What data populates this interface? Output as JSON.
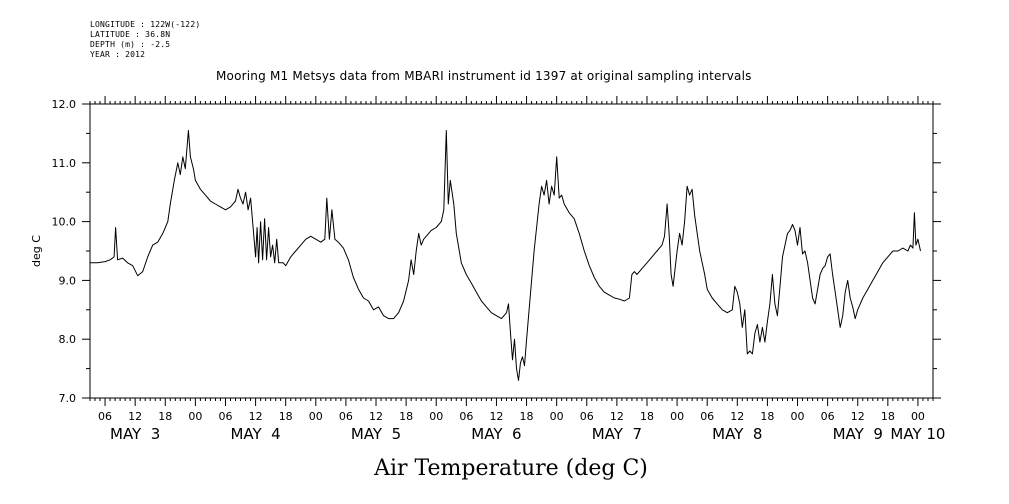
{
  "header": {
    "longitude": "LONGITUDE : 122W(-122)",
    "latitude": "LATITUDE : 36.8N",
    "depth": "DEPTH (m) : -2.5",
    "year": "YEAR : 2012"
  },
  "chart_data": {
    "type": "line",
    "title": "Mooring M1 Metsys data from MBARI instrument id 1397 at original sampling intervals",
    "xlabel": "Air Temperature (deg C)",
    "ylabel": "deg C",
    "ylim": [
      7.0,
      12.0
    ],
    "y_ticks": [
      "7.0",
      "8.0",
      "9.0",
      "10.0",
      "11.0",
      "12.0"
    ],
    "xlim_hours": [
      3,
      171
    ],
    "x_ticks": [
      "06",
      "12",
      "18",
      "00",
      "06",
      "12",
      "18",
      "00",
      "06",
      "12",
      "18",
      "00",
      "06",
      "12",
      "18",
      "00",
      "06",
      "12",
      "18",
      "00",
      "06",
      "12",
      "18",
      "00",
      "06",
      "12",
      "18",
      "00"
    ],
    "day_labels": [
      "MAY  3",
      "MAY  4",
      "MAY  5",
      "MAY  6",
      "MAY  7",
      "MAY  8",
      "MAY  9",
      "MAY 10"
    ],
    "grid": false,
    "series": [
      {
        "values": [
          [
            3.0,
            9.3
          ],
          [
            4.5,
            9.3
          ],
          [
            6.0,
            9.32
          ],
          [
            7.0,
            9.35
          ],
          [
            7.8,
            9.4
          ],
          [
            8.1,
            9.9
          ],
          [
            8.5,
            9.35
          ],
          [
            9.5,
            9.38
          ],
          [
            10.5,
            9.3
          ],
          [
            11.5,
            9.25
          ],
          [
            12.5,
            9.08
          ],
          [
            13.5,
            9.15
          ],
          [
            14.5,
            9.4
          ],
          [
            15.5,
            9.6
          ],
          [
            16.5,
            9.65
          ],
          [
            17.5,
            9.8
          ],
          [
            18.5,
            10.0
          ],
          [
            19.0,
            10.3
          ],
          [
            19.8,
            10.7
          ],
          [
            20.5,
            11.0
          ],
          [
            21.0,
            10.8
          ],
          [
            21.5,
            11.1
          ],
          [
            22.0,
            10.9
          ],
          [
            22.6,
            11.55
          ],
          [
            23.0,
            11.1
          ],
          [
            23.6,
            10.9
          ],
          [
            24.0,
            10.7
          ],
          [
            25.0,
            10.55
          ],
          [
            26.0,
            10.45
          ],
          [
            27.0,
            10.35
          ],
          [
            28.0,
            10.3
          ],
          [
            29.0,
            10.25
          ],
          [
            30.0,
            10.2
          ],
          [
            31.0,
            10.25
          ],
          [
            32.0,
            10.35
          ],
          [
            32.5,
            10.55
          ],
          [
            33.0,
            10.4
          ],
          [
            33.5,
            10.3
          ],
          [
            34.0,
            10.5
          ],
          [
            34.5,
            10.2
          ],
          [
            35.0,
            10.4
          ],
          [
            35.5,
            9.9
          ],
          [
            36.0,
            9.4
          ],
          [
            36.3,
            9.9
          ],
          [
            36.6,
            9.3
          ],
          [
            37.0,
            10.0
          ],
          [
            37.4,
            9.35
          ],
          [
            37.8,
            10.05
          ],
          [
            38.2,
            9.35
          ],
          [
            38.6,
            9.9
          ],
          [
            39.0,
            9.4
          ],
          [
            39.4,
            9.6
          ],
          [
            39.8,
            9.3
          ],
          [
            40.2,
            9.7
          ],
          [
            40.6,
            9.3
          ],
          [
            41.5,
            9.3
          ],
          [
            42.0,
            9.25
          ],
          [
            43.0,
            9.4
          ],
          [
            44.0,
            9.5
          ],
          [
            45.0,
            9.6
          ],
          [
            46.0,
            9.7
          ],
          [
            47.0,
            9.75
          ],
          [
            48.0,
            9.7
          ],
          [
            49.0,
            9.65
          ],
          [
            49.8,
            9.7
          ],
          [
            50.2,
            10.4
          ],
          [
            50.7,
            9.7
          ],
          [
            51.2,
            10.2
          ],
          [
            51.8,
            9.7
          ],
          [
            52.5,
            9.65
          ],
          [
            53.5,
            9.55
          ],
          [
            54.5,
            9.35
          ],
          [
            55.5,
            9.05
          ],
          [
            56.5,
            8.85
          ],
          [
            57.5,
            8.7
          ],
          [
            58.5,
            8.65
          ],
          [
            59.5,
            8.5
          ],
          [
            60.5,
            8.55
          ],
          [
            61.5,
            8.4
          ],
          [
            62.5,
            8.35
          ],
          [
            63.5,
            8.35
          ],
          [
            64.5,
            8.45
          ],
          [
            65.5,
            8.65
          ],
          [
            66.5,
            9.0
          ],
          [
            67.0,
            9.35
          ],
          [
            67.5,
            9.1
          ],
          [
            68.0,
            9.5
          ],
          [
            68.5,
            9.8
          ],
          [
            69.0,
            9.6
          ],
          [
            69.5,
            9.7
          ],
          [
            70.0,
            9.75
          ],
          [
            71.0,
            9.85
          ],
          [
            72.0,
            9.9
          ],
          [
            73.0,
            10.0
          ],
          [
            73.5,
            10.2
          ],
          [
            74.0,
            11.55
          ],
          [
            74.4,
            10.3
          ],
          [
            74.8,
            10.7
          ],
          [
            75.5,
            10.3
          ],
          [
            76.0,
            9.8
          ],
          [
            77.0,
            9.3
          ],
          [
            78.0,
            9.1
          ],
          [
            79.0,
            8.95
          ],
          [
            80.0,
            8.8
          ],
          [
            81.0,
            8.65
          ],
          [
            82.0,
            8.55
          ],
          [
            83.0,
            8.45
          ],
          [
            84.0,
            8.4
          ],
          [
            85.0,
            8.35
          ],
          [
            86.0,
            8.45
          ],
          [
            86.4,
            8.6
          ],
          [
            86.8,
            8.1
          ],
          [
            87.2,
            7.65
          ],
          [
            87.6,
            8.0
          ],
          [
            88.0,
            7.5
          ],
          [
            88.4,
            7.3
          ],
          [
            88.8,
            7.6
          ],
          [
            89.2,
            7.7
          ],
          [
            89.6,
            7.55
          ],
          [
            90.0,
            8.0
          ],
          [
            90.5,
            8.5
          ],
          [
            91.0,
            9.0
          ],
          [
            91.5,
            9.5
          ],
          [
            92.0,
            9.9
          ],
          [
            92.5,
            10.3
          ],
          [
            93.0,
            10.6
          ],
          [
            93.5,
            10.45
          ],
          [
            94.0,
            10.7
          ],
          [
            94.5,
            10.3
          ],
          [
            95.0,
            10.6
          ],
          [
            95.5,
            10.45
          ],
          [
            96.0,
            11.1
          ],
          [
            96.5,
            10.4
          ],
          [
            97.0,
            10.45
          ],
          [
            97.5,
            10.3
          ],
          [
            98.5,
            10.15
          ],
          [
            99.5,
            10.05
          ],
          [
            100.5,
            9.8
          ],
          [
            101.5,
            9.5
          ],
          [
            102.5,
            9.25
          ],
          [
            103.5,
            9.05
          ],
          [
            104.5,
            8.9
          ],
          [
            105.5,
            8.8
          ],
          [
            106.5,
            8.75
          ],
          [
            107.5,
            8.7
          ],
          [
            108.5,
            8.68
          ],
          [
            109.5,
            8.65
          ],
          [
            110.5,
            8.7
          ],
          [
            111.0,
            9.1
          ],
          [
            111.5,
            9.15
          ],
          [
            112.0,
            9.1
          ],
          [
            113.0,
            9.2
          ],
          [
            114.0,
            9.3
          ],
          [
            115.0,
            9.4
          ],
          [
            116.0,
            9.5
          ],
          [
            117.0,
            9.6
          ],
          [
            117.5,
            9.75
          ],
          [
            118.0,
            10.3
          ],
          [
            118.4,
            9.8
          ],
          [
            118.8,
            9.1
          ],
          [
            119.2,
            8.9
          ],
          [
            119.6,
            9.2
          ],
          [
            120.0,
            9.5
          ],
          [
            120.5,
            9.8
          ],
          [
            121.0,
            9.6
          ],
          [
            121.5,
            10.0
          ],
          [
            122.0,
            10.6
          ],
          [
            122.5,
            10.45
          ],
          [
            123.0,
            10.55
          ],
          [
            123.5,
            10.1
          ],
          [
            124.0,
            9.8
          ],
          [
            124.5,
            9.5
          ],
          [
            125.0,
            9.3
          ],
          [
            125.5,
            9.1
          ],
          [
            126.0,
            8.85
          ],
          [
            127.0,
            8.7
          ],
          [
            128.0,
            8.6
          ],
          [
            129.0,
            8.5
          ],
          [
            130.0,
            8.45
          ],
          [
            131.0,
            8.5
          ],
          [
            131.5,
            8.9
          ],
          [
            132.0,
            8.8
          ],
          [
            132.5,
            8.6
          ],
          [
            133.0,
            8.2
          ],
          [
            133.5,
            8.5
          ],
          [
            134.0,
            7.75
          ],
          [
            134.5,
            7.8
          ],
          [
            135.0,
            7.75
          ],
          [
            135.5,
            8.1
          ],
          [
            136.0,
            8.25
          ],
          [
            136.5,
            7.95
          ],
          [
            137.0,
            8.2
          ],
          [
            137.5,
            7.95
          ],
          [
            138.0,
            8.3
          ],
          [
            138.5,
            8.6
          ],
          [
            139.0,
            9.1
          ],
          [
            139.5,
            8.6
          ],
          [
            140.0,
            8.4
          ],
          [
            140.5,
            8.9
          ],
          [
            141.0,
            9.4
          ],
          [
            141.5,
            9.6
          ],
          [
            142.0,
            9.8
          ],
          [
            142.5,
            9.85
          ],
          [
            143.0,
            9.95
          ],
          [
            143.5,
            9.85
          ],
          [
            144.0,
            9.6
          ],
          [
            144.5,
            9.9
          ],
          [
            145.0,
            9.45
          ],
          [
            145.5,
            9.5
          ],
          [
            146.0,
            9.3
          ],
          [
            146.5,
            9.0
          ],
          [
            147.0,
            8.7
          ],
          [
            147.5,
            8.6
          ],
          [
            148.0,
            8.85
          ],
          [
            148.5,
            9.1
          ],
          [
            149.0,
            9.2
          ],
          [
            149.5,
            9.25
          ],
          [
            150.0,
            9.4
          ],
          [
            150.5,
            9.45
          ],
          [
            151.0,
            9.1
          ],
          [
            151.5,
            8.8
          ],
          [
            152.0,
            8.5
          ],
          [
            152.5,
            8.2
          ],
          [
            153.0,
            8.4
          ],
          [
            153.5,
            8.8
          ],
          [
            154.0,
            9.0
          ],
          [
            154.5,
            8.7
          ],
          [
            155.0,
            8.55
          ],
          [
            155.5,
            8.35
          ],
          [
            156.0,
            8.5
          ],
          [
            157.0,
            8.7
          ],
          [
            158.0,
            8.85
          ],
          [
            159.0,
            9.0
          ],
          [
            160.0,
            9.15
          ],
          [
            161.0,
            9.3
          ],
          [
            162.0,
            9.4
          ],
          [
            163.0,
            9.5
          ],
          [
            164.0,
            9.5
          ],
          [
            165.0,
            9.55
          ],
          [
            166.0,
            9.5
          ],
          [
            166.5,
            9.6
          ],
          [
            167.0,
            9.55
          ],
          [
            167.3,
            10.15
          ],
          [
            167.6,
            9.6
          ],
          [
            168.0,
            9.7
          ],
          [
            168.5,
            9.5
          ]
        ]
      }
    ]
  }
}
